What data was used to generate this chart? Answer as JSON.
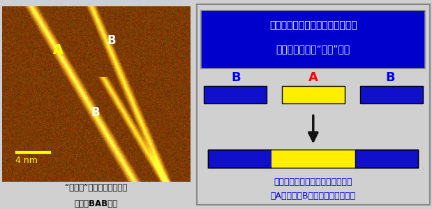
{
  "fig_width": 6.19,
  "fig_height": 2.99,
  "dpi": 100,
  "bg_color": "#d0d0d0",
  "left_panel": {
    "caption_line1": "“三連結”された分子電線の",
    "caption_line2": "写真（BAB型）",
    "scale_bar_text": "4 nm",
    "label_A": "A",
    "label_B1": "B",
    "label_B2": "B"
  },
  "right_panel": {
    "border_color": "#888888",
    "header_bg": "#0000cc",
    "header_text_line1": "異なる種類のプラスチック電線を",
    "header_text_line2": "１分子レベルで“連結”する",
    "header_text_color": "#ffffff",
    "label_B_color": "#0000ee",
    "label_A_color": "#ff0000",
    "label_B": "B",
    "label_A": "A",
    "bar_blue_color": "#1010cc",
    "bar_yellow_color": "#ffee00",
    "bar_border_color": "#000000",
    "arrow_color": "#111111",
    "bottom_text_line1": "新しい性質を持つ電線が作られる",
    "bottom_text_line2": "（Aが二つのBに閉じ込められた）",
    "bottom_text_color": "#0000ee"
  }
}
